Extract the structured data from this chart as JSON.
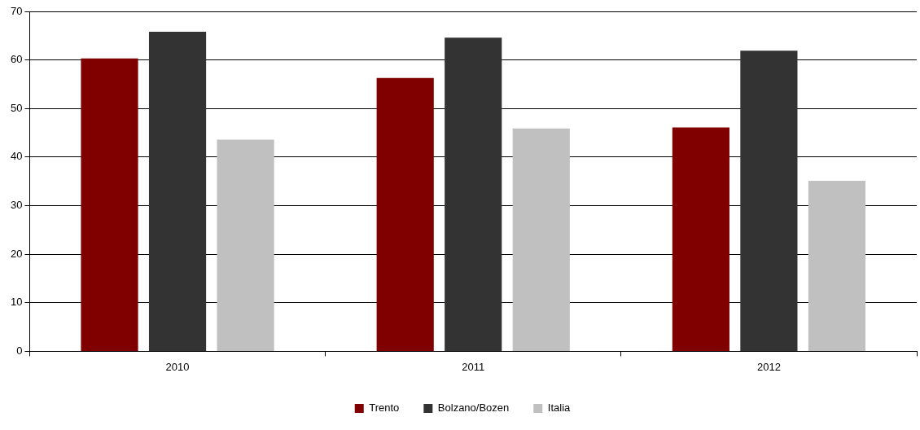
{
  "chart_data": {
    "type": "bar",
    "categories": [
      "2010",
      "2011",
      "2012"
    ],
    "series": [
      {
        "name": "Trento",
        "color": "#800000",
        "values": [
          60.3,
          56.3,
          46.1
        ]
      },
      {
        "name": "Bolzano/Bozen",
        "color": "#333333",
        "values": [
          65.8,
          64.6,
          61.9
        ]
      },
      {
        "name": "Italia",
        "color": "#c0c0c0",
        "values": [
          43.6,
          45.9,
          35.1
        ]
      }
    ],
    "ylim": [
      0,
      70
    ],
    "yticks": [
      0,
      10,
      20,
      30,
      40,
      50,
      60,
      70
    ],
    "grid": "y",
    "legend": "bottom"
  }
}
